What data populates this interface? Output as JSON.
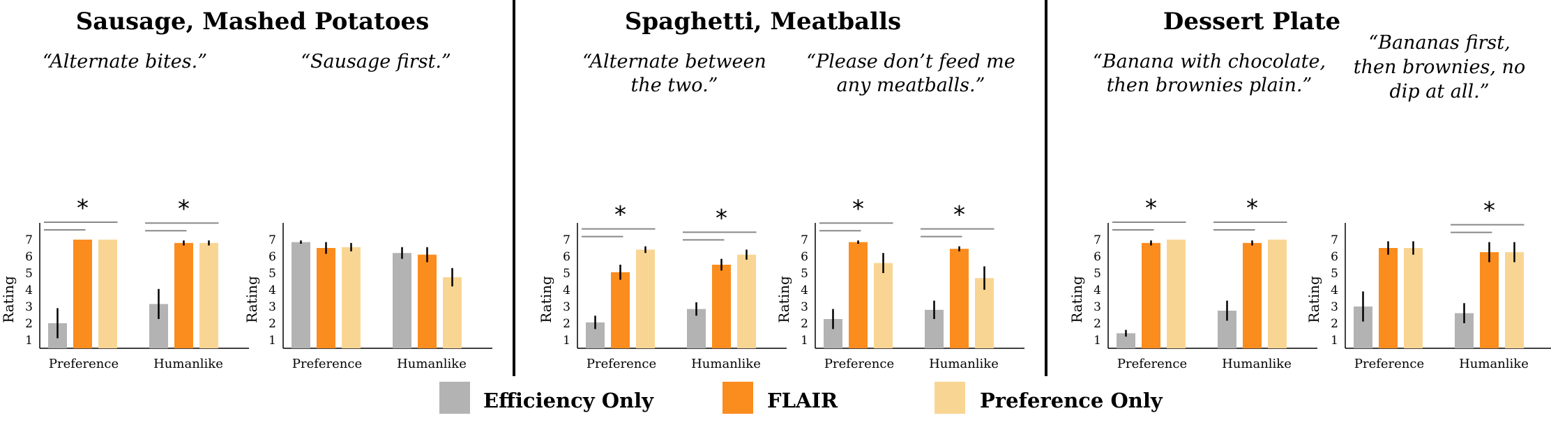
{
  "colors": {
    "efficiency": "#b3b3b3",
    "flair": "#fb8c1e",
    "preference": "#f9d594",
    "bracket": "#888888",
    "divider": "#000000"
  },
  "legend": [
    {
      "key": "efficiency",
      "label": "Efficiency Only"
    },
    {
      "key": "flair",
      "label": "FLAIR"
    },
    {
      "key": "preference",
      "label": "Preference Only"
    }
  ],
  "groups": [
    {
      "title": "Sausage, Mashed Potatoes"
    },
    {
      "title": "Spaghetti, Meatballs"
    },
    {
      "title": "Dessert Plate"
    }
  ],
  "chart_data": [
    {
      "type": "bar",
      "group": 0,
      "title": [
        "“Alternate bites.”"
      ],
      "ylabel": "Rating",
      "ylim": [
        0.5,
        8
      ],
      "yticks": [
        1,
        2,
        3,
        4,
        5,
        6,
        7
      ],
      "categories": [
        "Preference",
        "Humanlike"
      ],
      "series": [
        {
          "key": "efficiency",
          "values": [
            2.0,
            3.15
          ],
          "errors": [
            0.9,
            0.9
          ]
        },
        {
          "key": "flair",
          "values": [
            7.0,
            6.8
          ],
          "errors": [
            0.0,
            0.15
          ]
        },
        {
          "key": "preference",
          "values": [
            7.0,
            6.8
          ],
          "errors": [
            0.0,
            0.15
          ]
        }
      ],
      "significance": [
        [
          "*",
          "*"
        ]
      ]
    },
    {
      "type": "bar",
      "group": 0,
      "title": [
        "“Sausage first.”"
      ],
      "ylabel": "Rating",
      "ylim": [
        0.5,
        8
      ],
      "yticks": [
        1,
        2,
        3,
        4,
        5,
        6,
        7
      ],
      "categories": [
        "Preference",
        "Humanlike"
      ],
      "series": [
        {
          "key": "efficiency",
          "values": [
            6.85,
            6.2
          ],
          "errors": [
            0.1,
            0.35
          ]
        },
        {
          "key": "flair",
          "values": [
            6.5,
            6.1
          ],
          "errors": [
            0.35,
            0.45
          ]
        },
        {
          "key": "preference",
          "values": [
            6.55,
            4.75
          ],
          "errors": [
            0.25,
            0.55
          ]
        }
      ],
      "significance": [
        [
          "",
          ""
        ]
      ]
    },
    {
      "type": "bar",
      "group": 1,
      "title": [
        "“Alternate between",
        "the two.”"
      ],
      "ylabel": "Rating",
      "ylim": [
        0.5,
        8
      ],
      "yticks": [
        1,
        2,
        3,
        4,
        5,
        6,
        7
      ],
      "categories": [
        "Preference",
        "Humanlike"
      ],
      "series": [
        {
          "key": "efficiency",
          "values": [
            2.05,
            2.85
          ],
          "errors": [
            0.4,
            0.4
          ]
        },
        {
          "key": "flair",
          "values": [
            5.05,
            5.5
          ],
          "errors": [
            0.45,
            0.35
          ]
        },
        {
          "key": "preference",
          "values": [
            6.4,
            6.1
          ],
          "errors": [
            0.2,
            0.3
          ]
        }
      ],
      "significance": [
        [
          "*",
          "*"
        ]
      ]
    },
    {
      "type": "bar",
      "group": 1,
      "title": [
        "“Please don’t feed me",
        "any meatballs.”"
      ],
      "ylabel": "Rating",
      "ylim": [
        0.5,
        8
      ],
      "yticks": [
        1,
        2,
        3,
        4,
        5,
        6,
        7
      ],
      "categories": [
        "Preference",
        "Humanlike"
      ],
      "series": [
        {
          "key": "efficiency",
          "values": [
            2.25,
            2.8
          ],
          "errors": [
            0.6,
            0.55
          ]
        },
        {
          "key": "flair",
          "values": [
            6.85,
            6.45
          ],
          "errors": [
            0.1,
            0.15
          ]
        },
        {
          "key": "preference",
          "values": [
            5.6,
            4.7
          ],
          "errors": [
            0.6,
            0.7
          ]
        }
      ],
      "significance": [
        [
          "*",
          "*"
        ]
      ]
    },
    {
      "type": "bar",
      "group": 2,
      "title": [
        "“Banana with chocolate,",
        "then brownies plain.”"
      ],
      "ylabel": "Rating",
      "ylim": [
        0.5,
        8
      ],
      "yticks": [
        1,
        2,
        3,
        4,
        5,
        6,
        7
      ],
      "categories": [
        "Preference",
        "Humanlike"
      ],
      "series": [
        {
          "key": "efficiency",
          "values": [
            1.4,
            2.75
          ],
          "errors": [
            0.2,
            0.6
          ]
        },
        {
          "key": "flair",
          "values": [
            6.8,
            6.8
          ],
          "errors": [
            0.15,
            0.15
          ]
        },
        {
          "key": "preference",
          "values": [
            7.0,
            7.0
          ],
          "errors": [
            0.0,
            0.0
          ]
        }
      ],
      "significance": [
        [
          "*",
          "*"
        ]
      ]
    },
    {
      "type": "bar",
      "group": 2,
      "title": [
        "“Bananas first,",
        "then brownies, no",
        "dip at all.”"
      ],
      "ylabel": "Rating",
      "ylim": [
        0.5,
        8
      ],
      "yticks": [
        1,
        2,
        3,
        4,
        5,
        6,
        7
      ],
      "categories": [
        "Preference",
        "Humanlike"
      ],
      "series": [
        {
          "key": "efficiency",
          "values": [
            3.0,
            2.6
          ],
          "errors": [
            0.9,
            0.6
          ]
        },
        {
          "key": "flair",
          "values": [
            6.5,
            6.25
          ],
          "errors": [
            0.4,
            0.6
          ]
        },
        {
          "key": "preference",
          "values": [
            6.5,
            6.25
          ],
          "errors": [
            0.4,
            0.6
          ]
        }
      ],
      "significance": [
        [
          "",
          "*"
        ]
      ]
    }
  ]
}
